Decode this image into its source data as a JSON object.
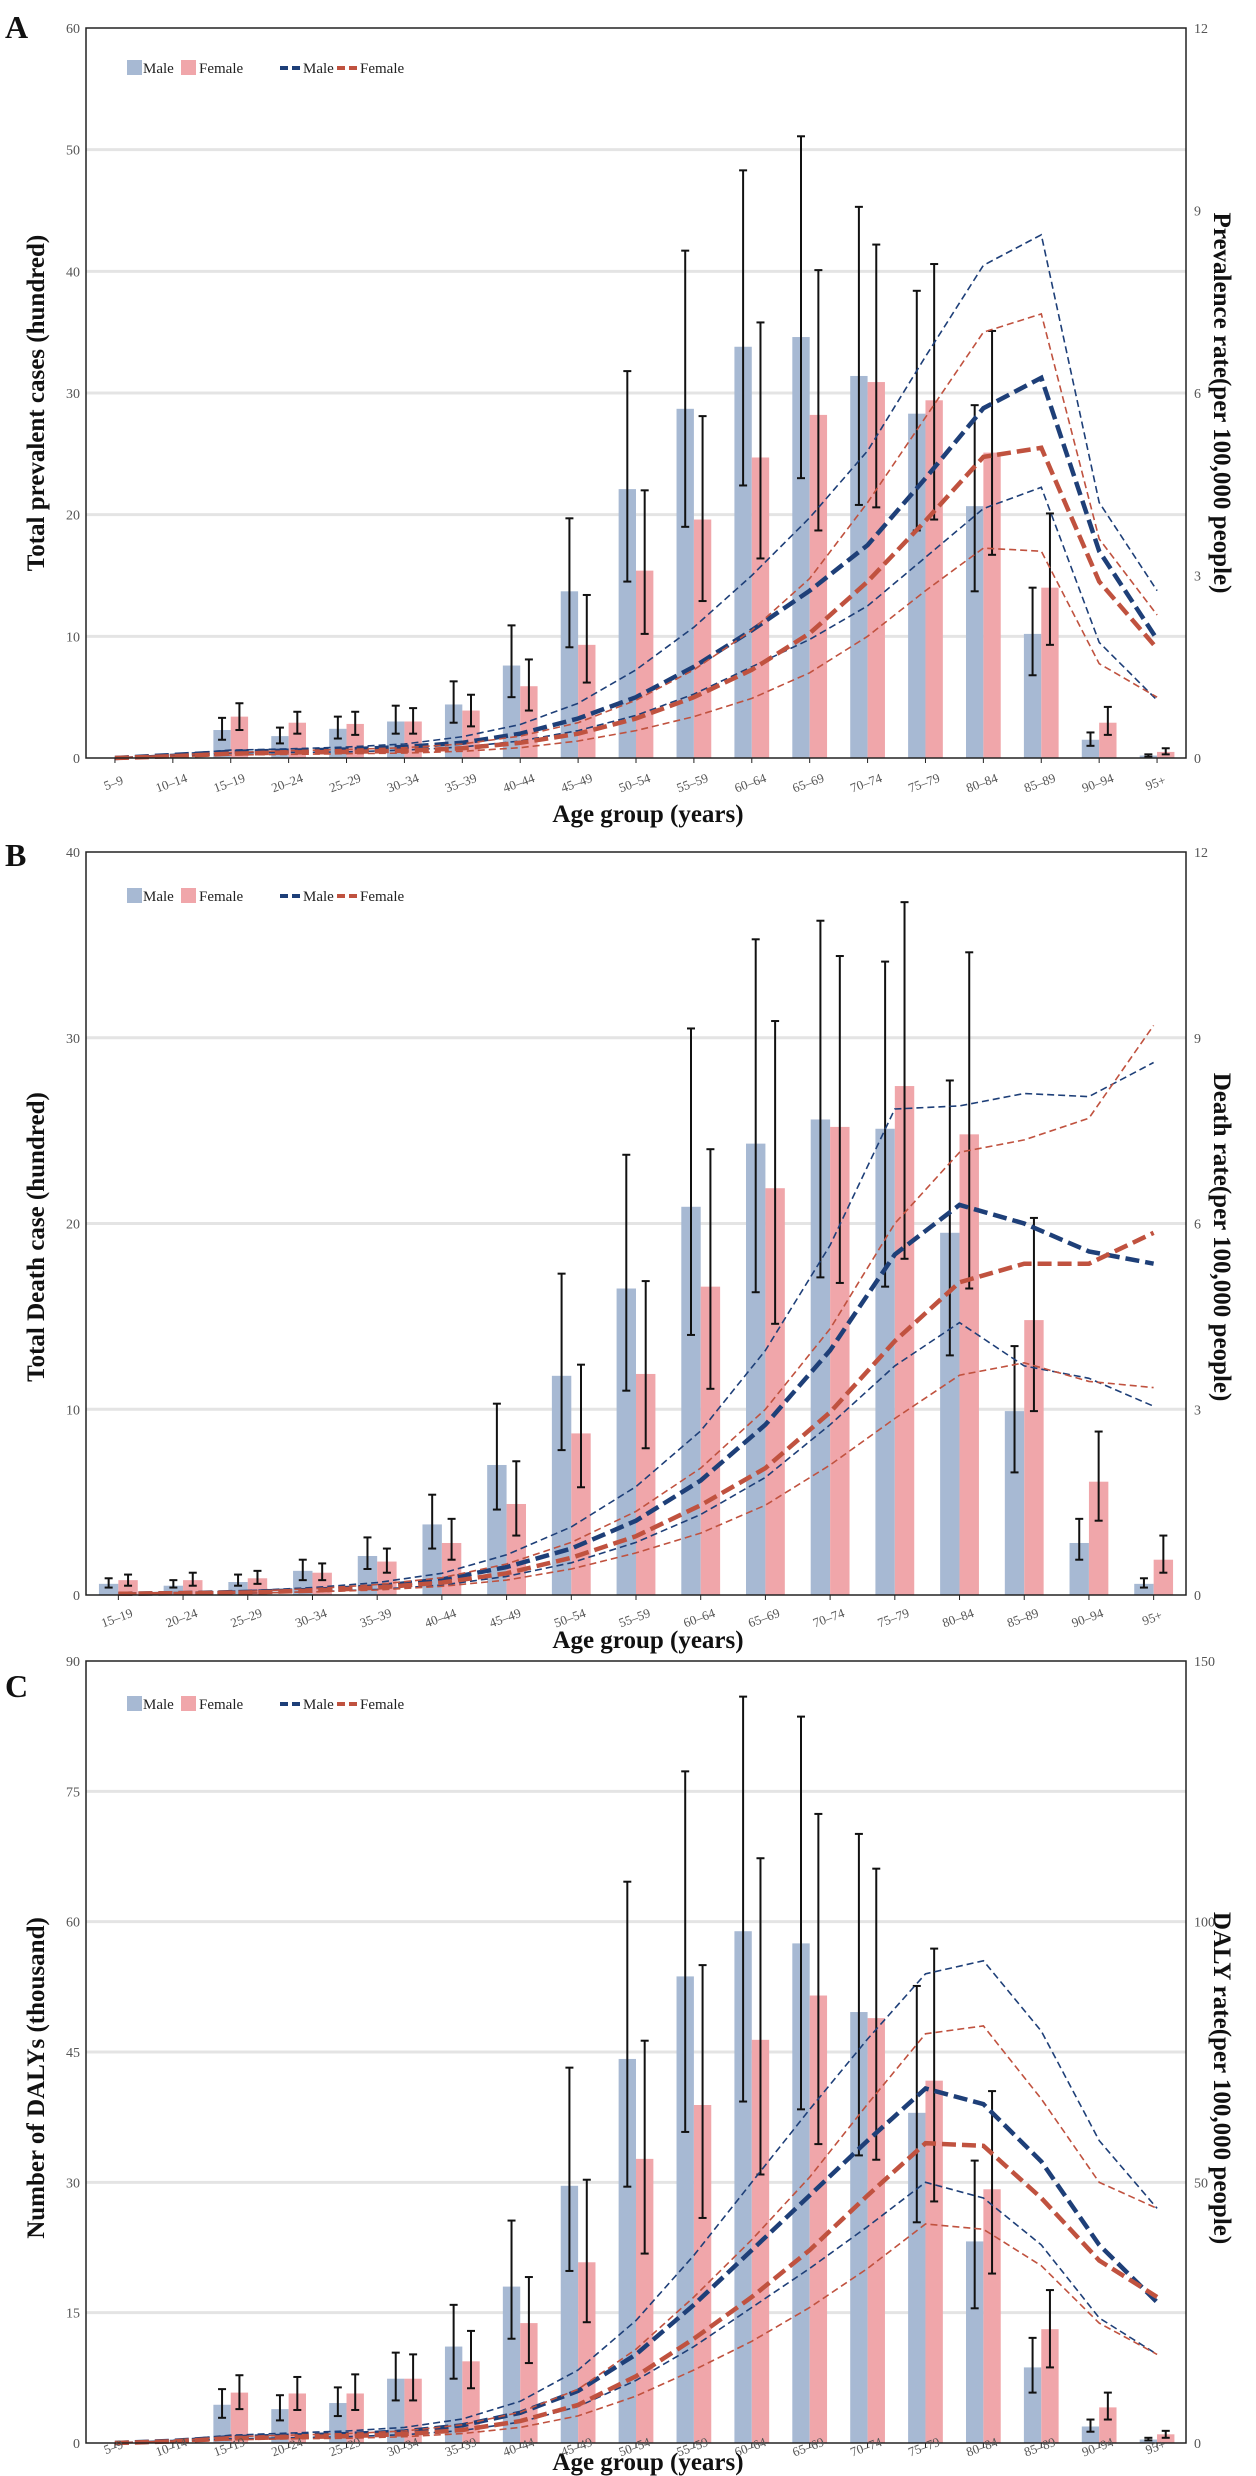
{
  "chart_data": [
    {
      "panel": "A",
      "type": "bar",
      "categories": [
        "5–9",
        "10–14",
        "15–19",
        "20–24",
        "25–29",
        "30–34",
        "35–39",
        "40–44",
        "45–49",
        "50–54",
        "55–59",
        "60–64",
        "65–69",
        "70–74",
        "75–79",
        "80–84",
        "85–89",
        "90–94",
        "95+"
      ],
      "ylabel": "Total prevalent cases (hundred)",
      "ylabel_right": "Prevalence rate(per 100,000 people)",
      "xlabel": "Age group (years)",
      "ylim": [
        0,
        60
      ],
      "yticks": [
        0,
        10,
        20,
        30,
        40,
        50,
        60
      ],
      "y2lim": [
        0,
        12
      ],
      "y2ticks": [
        0,
        3,
        6,
        9,
        12
      ],
      "legend": [
        "Male",
        "Female",
        "Male",
        "Female"
      ],
      "bars": [
        {
          "name": "Male",
          "color": "#a7b9d3",
          "values": [
            0,
            0,
            2.3,
            1.8,
            2.4,
            3.0,
            4.4,
            7.6,
            13.7,
            22.1,
            28.7,
            33.8,
            34.6,
            31.4,
            28.3,
            20.7,
            10.2,
            1.5,
            0.2
          ],
          "lower": [
            0,
            0,
            1.5,
            1.2,
            1.6,
            2.0,
            2.9,
            5.0,
            9.1,
            14.5,
            19.0,
            22.4,
            23.0,
            20.8,
            18.7,
            13.7,
            6.8,
            1.0,
            0.1
          ],
          "upper": [
            0,
            0,
            3.3,
            2.5,
            3.4,
            4.3,
            6.3,
            10.9,
            19.7,
            31.8,
            41.7,
            48.3,
            51.1,
            45.3,
            38.4,
            29.0,
            14.0,
            2.1,
            0.3
          ]
        },
        {
          "name": "Female",
          "color": "#f0a6aa",
          "values": [
            0,
            0,
            3.4,
            2.9,
            2.8,
            3.0,
            3.9,
            5.9,
            9.3,
            15.4,
            19.6,
            24.7,
            28.2,
            30.9,
            29.4,
            25.1,
            14.0,
            2.9,
            0.5
          ],
          "lower": [
            0,
            0,
            2.3,
            2.0,
            1.9,
            2.0,
            2.6,
            3.9,
            6.2,
            10.2,
            12.9,
            16.4,
            18.7,
            20.6,
            19.6,
            16.7,
            9.3,
            1.9,
            0.3
          ],
          "upper": [
            0,
            0,
            4.5,
            3.8,
            3.8,
            4.1,
            5.2,
            8.1,
            13.4,
            22.0,
            28.1,
            35.8,
            40.1,
            42.2,
            40.6,
            35.1,
            20.1,
            4.2,
            0.8
          ]
        }
      ],
      "lines": [
        {
          "name": "Male",
          "color": "#1e3f78",
          "values": [
            0,
            0.05,
            0.1,
            0.12,
            0.14,
            0.18,
            0.25,
            0.4,
            0.65,
            1.0,
            1.5,
            2.1,
            2.75,
            3.5,
            4.6,
            5.75,
            6.25,
            3.4,
            1.95
          ],
          "lower": [
            0,
            0.04,
            0.08,
            0.09,
            0.1,
            0.13,
            0.18,
            0.28,
            0.45,
            0.7,
            1.05,
            1.5,
            1.95,
            2.5,
            3.3,
            4.1,
            4.45,
            1.9,
            0.95
          ],
          "upper": [
            0,
            0.06,
            0.13,
            0.15,
            0.18,
            0.23,
            0.35,
            0.55,
            0.9,
            1.45,
            2.15,
            3.0,
            3.95,
            5.05,
            6.6,
            8.1,
            8.6,
            4.2,
            2.75
          ]
        },
        {
          "name": "Female",
          "color": "#c0523f",
          "values": [
            0,
            0.03,
            0.07,
            0.09,
            0.1,
            0.12,
            0.16,
            0.25,
            0.4,
            0.65,
            1.0,
            1.45,
            2.05,
            2.9,
            3.9,
            4.95,
            5.1,
            2.9,
            1.8
          ],
          "lower": [
            0,
            0.02,
            0.05,
            0.06,
            0.07,
            0.08,
            0.11,
            0.17,
            0.28,
            0.45,
            0.68,
            0.98,
            1.4,
            2.0,
            2.75,
            3.45,
            3.4,
            1.55,
            1.0
          ],
          "upper": [
            0,
            0.05,
            0.09,
            0.12,
            0.14,
            0.17,
            0.23,
            0.36,
            0.58,
            0.95,
            1.45,
            2.1,
            2.95,
            4.2,
            5.6,
            7.0,
            7.3,
            3.6,
            2.35
          ]
        }
      ]
    },
    {
      "panel": "B",
      "type": "bar",
      "categories": [
        "15–19",
        "20–24",
        "25–29",
        "30–34",
        "35–39",
        "40–44",
        "45–49",
        "50–54",
        "55–59",
        "60–64",
        "65–69",
        "70–74",
        "75–79",
        "80–84",
        "85–89",
        "90–94",
        "95+"
      ],
      "ylabel": "Total Death case (hundred)",
      "ylabel_right": "Death rate(per 100,000 people)",
      "xlabel": "Age group (years)",
      "ylim": [
        0,
        40
      ],
      "yticks": [
        0,
        10,
        20,
        30,
        40
      ],
      "y2lim": [
        0,
        12
      ],
      "y2ticks": [
        0,
        3,
        6,
        9,
        12
      ],
      "legend": [
        "Male",
        "Female",
        "Male",
        "Female"
      ],
      "bars": [
        {
          "name": "Male",
          "color": "#a7b9d3",
          "values": [
            0.6,
            0.5,
            0.7,
            1.3,
            2.1,
            3.8,
            7.0,
            11.8,
            16.5,
            20.9,
            24.3,
            25.6,
            25.1,
            19.5,
            9.9,
            2.8,
            0.6
          ],
          "lower": [
            0.4,
            0.4,
            0.5,
            0.8,
            1.4,
            2.5,
            4.6,
            7.8,
            11.0,
            14.0,
            16.3,
            17.1,
            16.6,
            12.9,
            6.6,
            1.9,
            0.4
          ],
          "upper": [
            0.9,
            0.8,
            1.1,
            1.9,
            3.1,
            5.4,
            10.3,
            17.3,
            23.7,
            30.5,
            35.3,
            36.3,
            34.1,
            27.7,
            13.4,
            4.1,
            0.9
          ]
        },
        {
          "name": "Female",
          "color": "#f0a6aa",
          "values": [
            0.8,
            0.8,
            0.9,
            1.2,
            1.8,
            2.8,
            4.9,
            8.7,
            11.9,
            16.6,
            21.9,
            25.2,
            27.4,
            24.8,
            14.8,
            6.1,
            1.9
          ],
          "lower": [
            0.5,
            0.5,
            0.6,
            0.8,
            1.2,
            1.9,
            3.2,
            5.8,
            7.9,
            11.1,
            14.6,
            16.8,
            18.1,
            16.5,
            9.9,
            4.0,
            1.2
          ],
          "upper": [
            1.1,
            1.2,
            1.3,
            1.7,
            2.5,
            4.1,
            7.2,
            12.4,
            16.9,
            24.0,
            30.9,
            34.4,
            37.3,
            34.6,
            20.3,
            8.8,
            3.2
          ]
        }
      ],
      "lines": [
        {
          "name": "Male",
          "color": "#1e3f78",
          "values": [
            0.02,
            0.03,
            0.05,
            0.08,
            0.14,
            0.25,
            0.45,
            0.75,
            1.2,
            1.85,
            2.75,
            3.95,
            5.5,
            6.3,
            6.0,
            5.55,
            5.35
          ],
          "lower": [
            0.01,
            0.02,
            0.03,
            0.05,
            0.09,
            0.16,
            0.3,
            0.52,
            0.85,
            1.3,
            1.9,
            2.75,
            3.7,
            4.4,
            3.7,
            3.5,
            3.05
          ],
          "upper": [
            0.03,
            0.04,
            0.07,
            0.12,
            0.2,
            0.35,
            0.65,
            1.1,
            1.75,
            2.65,
            3.95,
            5.65,
            7.85,
            7.9,
            8.1,
            8.05,
            8.6
          ]
        },
        {
          "name": "Female",
          "color": "#c0523f",
          "values": [
            0.02,
            0.03,
            0.04,
            0.07,
            0.12,
            0.2,
            0.35,
            0.6,
            0.95,
            1.45,
            2.05,
            2.95,
            4.1,
            5.05,
            5.35,
            5.35,
            5.85
          ],
          "lower": [
            0.01,
            0.02,
            0.03,
            0.05,
            0.08,
            0.14,
            0.24,
            0.42,
            0.68,
            1.0,
            1.45,
            2.1,
            2.85,
            3.55,
            3.75,
            3.45,
            3.35
          ],
          "upper": [
            0.03,
            0.04,
            0.06,
            0.1,
            0.17,
            0.28,
            0.5,
            0.85,
            1.35,
            2.05,
            3.0,
            4.3,
            6.0,
            7.15,
            7.35,
            7.7,
            9.2
          ]
        }
      ]
    },
    {
      "panel": "C",
      "type": "bar",
      "categories": [
        "5–9",
        "10–14",
        "15–19",
        "20–24",
        "25–29",
        "30–34",
        "35–39",
        "40–44",
        "45–49",
        "50–54",
        "55–59",
        "60–64",
        "65–69",
        "70–74",
        "75–79",
        "80–84",
        "85–89",
        "90–94",
        "95+"
      ],
      "ylabel": "Number of DALYs (thousand)",
      "ylabel_right": "DALY rate(per 100,000 people)",
      "xlabel": "Age group (years)",
      "ylim": [
        0,
        90
      ],
      "yticks": [
        0,
        15,
        30,
        45,
        60,
        75,
        90
      ],
      "y2lim": [
        0,
        150
      ],
      "y2ticks": [
        0,
        50,
        100,
        150
      ],
      "legend": [
        "Male",
        "Female",
        "Male",
        "Female"
      ],
      "bars": [
        {
          "name": "Male",
          "color": "#a7b9d3",
          "values": [
            0,
            0,
            4.4,
            3.9,
            4.6,
            7.4,
            11.1,
            18.0,
            29.6,
            44.2,
            53.7,
            58.9,
            57.5,
            49.6,
            38.0,
            23.2,
            8.7,
            1.9,
            0.4
          ],
          "lower": [
            0,
            0,
            2.9,
            2.6,
            3.1,
            4.9,
            7.4,
            12.0,
            19.8,
            29.5,
            35.8,
            39.3,
            38.4,
            33.1,
            25.4,
            15.5,
            5.8,
            1.3,
            0.3
          ],
          "upper": [
            0,
            0,
            6.2,
            5.5,
            6.4,
            10.4,
            15.9,
            25.6,
            43.2,
            64.6,
            77.3,
            85.9,
            83.6,
            70.1,
            52.6,
            32.5,
            12.1,
            2.7,
            0.6
          ]
        },
        {
          "name": "Female",
          "color": "#f0a6aa",
          "values": [
            0,
            0,
            5.8,
            5.7,
            5.7,
            7.4,
            9.4,
            13.8,
            20.8,
            32.7,
            38.9,
            46.4,
            51.5,
            48.9,
            41.7,
            29.2,
            13.1,
            4.1,
            1.0
          ],
          "lower": [
            0,
            0,
            3.9,
            3.8,
            3.8,
            4.9,
            6.3,
            9.2,
            13.9,
            21.8,
            25.9,
            30.9,
            34.4,
            32.6,
            27.8,
            19.5,
            8.7,
            2.7,
            0.6
          ],
          "upper": [
            0,
            0,
            7.8,
            7.6,
            7.9,
            10.2,
            12.9,
            19.1,
            30.3,
            46.3,
            55.0,
            67.3,
            72.4,
            66.1,
            56.9,
            40.5,
            17.6,
            5.8,
            1.4
          ]
        }
      ],
      "lines": [
        {
          "name": "Male",
          "color": "#1e3f78",
          "values": [
            0,
            0.4,
            1.1,
            1.4,
            1.7,
            2.2,
            3.4,
            5.8,
            10.0,
            17.0,
            26.5,
            37.0,
            47.5,
            58.0,
            68.0,
            65.0,
            54.0,
            38.0,
            27.0
          ],
          "lower": [
            0,
            0.3,
            0.8,
            1.0,
            1.2,
            1.6,
            2.4,
            4.0,
            7.0,
            12.0,
            18.5,
            26.0,
            33.5,
            41.5,
            50.0,
            47.0,
            38.0,
            24.0,
            17.0
          ],
          "upper": [
            0,
            0.5,
            1.5,
            1.9,
            2.3,
            3.0,
            4.6,
            8.0,
            14.0,
            23.5,
            36.0,
            50.0,
            64.0,
            77.5,
            90.0,
            92.5,
            79.0,
            58.0,
            45.0
          ]
        },
        {
          "name": "Female",
          "color": "#c0523f",
          "values": [
            0,
            0.3,
            0.9,
            1.1,
            1.3,
            1.7,
            2.5,
            4.2,
            7.3,
            12.8,
            20.0,
            28.0,
            37.0,
            47.5,
            57.5,
            57.0,
            47.0,
            35.0,
            28.0
          ],
          "lower": [
            0,
            0.2,
            0.6,
            0.8,
            0.9,
            1.2,
            1.8,
            3.0,
            5.2,
            9.0,
            14.0,
            19.5,
            26.0,
            33.5,
            42.0,
            41.0,
            34.0,
            23.0,
            17.0
          ],
          "upper": [
            0,
            0.4,
            1.2,
            1.5,
            1.8,
            2.3,
            3.5,
            5.9,
            10.3,
            18.0,
            28.0,
            39.0,
            51.0,
            65.0,
            78.5,
            80.0,
            66.0,
            50.0,
            45.0
          ]
        }
      ]
    }
  ]
}
